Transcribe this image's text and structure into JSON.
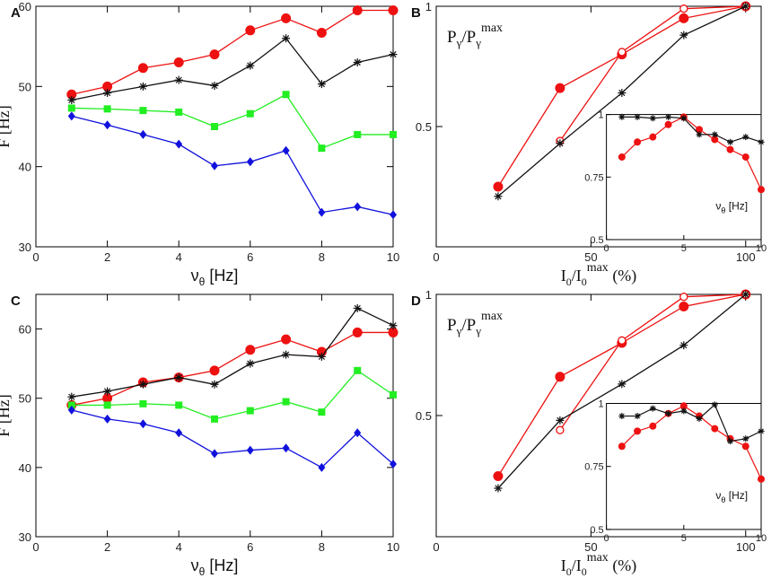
{
  "colors": {
    "red": "#ee1111",
    "black": "#111111",
    "green": "#22ee22",
    "blue": "#1111dd"
  },
  "chart_data": [
    {
      "id": "A",
      "panel_label": "A",
      "type": "line",
      "xlabel_main": "ν",
      "xlabel_sub": "θ",
      "xlabel_unit": " [Hz]",
      "ylabel": "F [Hz]",
      "xlim": [
        0,
        10
      ],
      "ylim": [
        30,
        60
      ],
      "xticks": [
        0,
        2,
        4,
        6,
        8,
        10
      ],
      "xtick_labels": [
        "0",
        "2",
        "4",
        "6",
        "8",
        "10"
      ],
      "yticks": [
        30,
        40,
        50,
        60
      ],
      "ytick_labels": [
        "30",
        "40",
        "50",
        "60"
      ],
      "x": [
        1,
        2,
        3,
        4,
        5,
        6,
        7,
        8,
        9,
        10
      ],
      "series": [
        {
          "name": "red-circles",
          "color": "#ee1111",
          "marker": "circle",
          "values": [
            49,
            50,
            52.3,
            53,
            54,
            57,
            58.5,
            56.7,
            59.5,
            59.5
          ]
        },
        {
          "name": "black-stars",
          "color": "#111111",
          "marker": "star",
          "values": [
            48.3,
            49.2,
            50,
            50.8,
            50.1,
            52.6,
            56,
            50.3,
            53,
            54
          ]
        },
        {
          "name": "green-squares",
          "color": "#22ee22",
          "marker": "square",
          "values": [
            47.3,
            47.2,
            47,
            46.8,
            45,
            46.6,
            49,
            42.3,
            44,
            44
          ]
        },
        {
          "name": "blue-diamonds",
          "color": "#1111dd",
          "marker": "diamond",
          "values": [
            46.3,
            45.2,
            44,
            42.8,
            40.1,
            40.6,
            42,
            34.3,
            35,
            34
          ]
        }
      ]
    },
    {
      "id": "B",
      "panel_label": "B",
      "type": "line",
      "title_main": "P",
      "title_sub": "γ",
      "title_mid": "/P",
      "title_sub2": "γ",
      "title_sup": "max",
      "xlabel_main": "I",
      "xlabel_sub": "0",
      "xlabel_mid": "/I",
      "xlabel_sub2": "0",
      "xlabel_sup": "max",
      "xlabel_unit": " (%)",
      "xlim": [
        0,
        105
      ],
      "ylim": [
        0,
        1
      ],
      "xticks": [
        0,
        50,
        100
      ],
      "xtick_labels": [
        "0",
        "50",
        "100"
      ],
      "yticks": [
        0.5,
        1
      ],
      "ytick_labels": [
        "0.5",
        "1"
      ],
      "series": [
        {
          "name": "red-filled",
          "color": "#ee1111",
          "marker": "circle",
          "x": [
            20,
            40,
            60,
            80,
            100
          ],
          "values": [
            0.25,
            0.66,
            0.8,
            0.95,
            1.0
          ]
        },
        {
          "name": "red-open",
          "color": "#ee1111",
          "marker": "open-circle",
          "x": [
            40,
            60,
            80,
            100
          ],
          "values": [
            0.44,
            0.81,
            0.99,
            1.0
          ]
        },
        {
          "name": "black-stars",
          "color": "#111111",
          "marker": "star",
          "x": [
            20,
            40,
            60,
            80,
            100
          ],
          "values": [
            0.21,
            0.43,
            0.64,
            0.88,
            1.0
          ]
        }
      ],
      "inset": {
        "xlim": [
          0,
          10
        ],
        "ylim": [
          0.5,
          1
        ],
        "xticks": [
          0,
          5,
          10
        ],
        "xtick_labels": [
          "0",
          "5",
          "10"
        ],
        "yticks": [
          0.5,
          0.75,
          1
        ],
        "ytick_labels": [
          "0.5",
          "0.75",
          "1"
        ],
        "label_main": "ν",
        "label_sub": "θ",
        "label_unit": " [Hz]",
        "x": [
          1,
          2,
          3,
          4,
          5,
          6,
          7,
          8,
          9,
          10
        ],
        "series": [
          {
            "name": "inset-red",
            "color": "#ee1111",
            "marker": "circle",
            "values": [
              0.83,
              0.89,
              0.91,
              0.96,
              0.99,
              0.94,
              0.9,
              0.86,
              0.83,
              0.7
            ]
          },
          {
            "name": "inset-black",
            "color": "#111111",
            "marker": "star",
            "values": [
              0.99,
              0.99,
              0.985,
              0.99,
              0.985,
              0.92,
              0.92,
              0.89,
              0.91,
              0.89
            ]
          }
        ]
      }
    },
    {
      "id": "C",
      "panel_label": "C",
      "type": "line",
      "xlabel_main": "ν",
      "xlabel_sub": "θ",
      "xlabel_unit": " [Hz]",
      "ylabel": "F [Hz]",
      "xlim": [
        0,
        10
      ],
      "ylim": [
        30,
        65
      ],
      "xticks": [
        0,
        2,
        4,
        6,
        8,
        10
      ],
      "xtick_labels": [
        "0",
        "2",
        "4",
        "6",
        "8",
        "10"
      ],
      "yticks": [
        30,
        40,
        50,
        60
      ],
      "ytick_labels": [
        "30",
        "40",
        "50",
        "60"
      ],
      "x": [
        1,
        2,
        3,
        4,
        5,
        6,
        7,
        8,
        9,
        10
      ],
      "series": [
        {
          "name": "red-circles",
          "color": "#ee1111",
          "marker": "circle",
          "values": [
            49,
            50,
            52.3,
            53,
            54,
            57,
            58.5,
            56.7,
            59.5,
            59.5
          ]
        },
        {
          "name": "black-stars",
          "color": "#111111",
          "marker": "star",
          "values": [
            50.2,
            51,
            52,
            53,
            52,
            55,
            56.3,
            56,
            63,
            60.5
          ]
        },
        {
          "name": "green-squares",
          "color": "#22ee22",
          "marker": "square",
          "values": [
            49,
            49,
            49.2,
            49,
            47,
            48.2,
            49.5,
            48,
            54,
            50.5
          ]
        },
        {
          "name": "blue-diamonds",
          "color": "#1111dd",
          "marker": "diamond",
          "values": [
            48.3,
            47,
            46.3,
            45,
            42,
            42.5,
            42.8,
            40,
            45,
            40.5
          ]
        }
      ]
    },
    {
      "id": "D",
      "panel_label": "D",
      "type": "line",
      "title_main": "P",
      "title_sub": "γ",
      "title_mid": "/P",
      "title_sub2": "γ",
      "title_sup": "max",
      "xlabel_main": "I",
      "xlabel_sub": "0",
      "xlabel_mid": "/I",
      "xlabel_sub2": "0",
      "xlabel_sup": "max",
      "xlabel_unit": " (%)",
      "xlim": [
        0,
        105
      ],
      "ylim": [
        0,
        1
      ],
      "xticks": [
        0,
        50,
        100
      ],
      "xtick_labels": [
        "0",
        "50",
        "100"
      ],
      "yticks": [
        0.5,
        1
      ],
      "ytick_labels": [
        "0.5",
        "1"
      ],
      "series": [
        {
          "name": "red-filled",
          "color": "#ee1111",
          "marker": "circle",
          "x": [
            20,
            40,
            60,
            80,
            100
          ],
          "values": [
            0.25,
            0.66,
            0.8,
            0.95,
            1.0
          ]
        },
        {
          "name": "red-open",
          "color": "#ee1111",
          "marker": "open-circle",
          "x": [
            40,
            60,
            80,
            100
          ],
          "values": [
            0.44,
            0.81,
            0.99,
            1.0
          ]
        },
        {
          "name": "black-stars",
          "color": "#111111",
          "marker": "star",
          "x": [
            20,
            40,
            60,
            80,
            100
          ],
          "values": [
            0.2,
            0.48,
            0.63,
            0.79,
            1.0
          ]
        }
      ],
      "inset": {
        "xlim": [
          0,
          10
        ],
        "ylim": [
          0.5,
          1
        ],
        "xticks": [
          0,
          5,
          10
        ],
        "xtick_labels": [
          "0",
          "5",
          "10"
        ],
        "yticks": [
          0.5,
          0.75,
          1
        ],
        "ytick_labels": [
          "0.5",
          "0.75",
          "1"
        ],
        "label_main": "ν",
        "label_sub": "θ",
        "label_unit": " [Hz]",
        "x": [
          1,
          2,
          3,
          4,
          5,
          6,
          7,
          8,
          9,
          10
        ],
        "series": [
          {
            "name": "inset-red",
            "color": "#ee1111",
            "marker": "circle",
            "values": [
              0.83,
              0.89,
              0.91,
              0.96,
              0.99,
              0.95,
              0.9,
              0.86,
              0.83,
              0.7
            ]
          },
          {
            "name": "inset-black",
            "color": "#111111",
            "marker": "star",
            "values": [
              0.95,
              0.95,
              0.98,
              0.96,
              0.97,
              0.94,
              0.995,
              0.85,
              0.86,
              0.89
            ]
          }
        ]
      }
    }
  ]
}
